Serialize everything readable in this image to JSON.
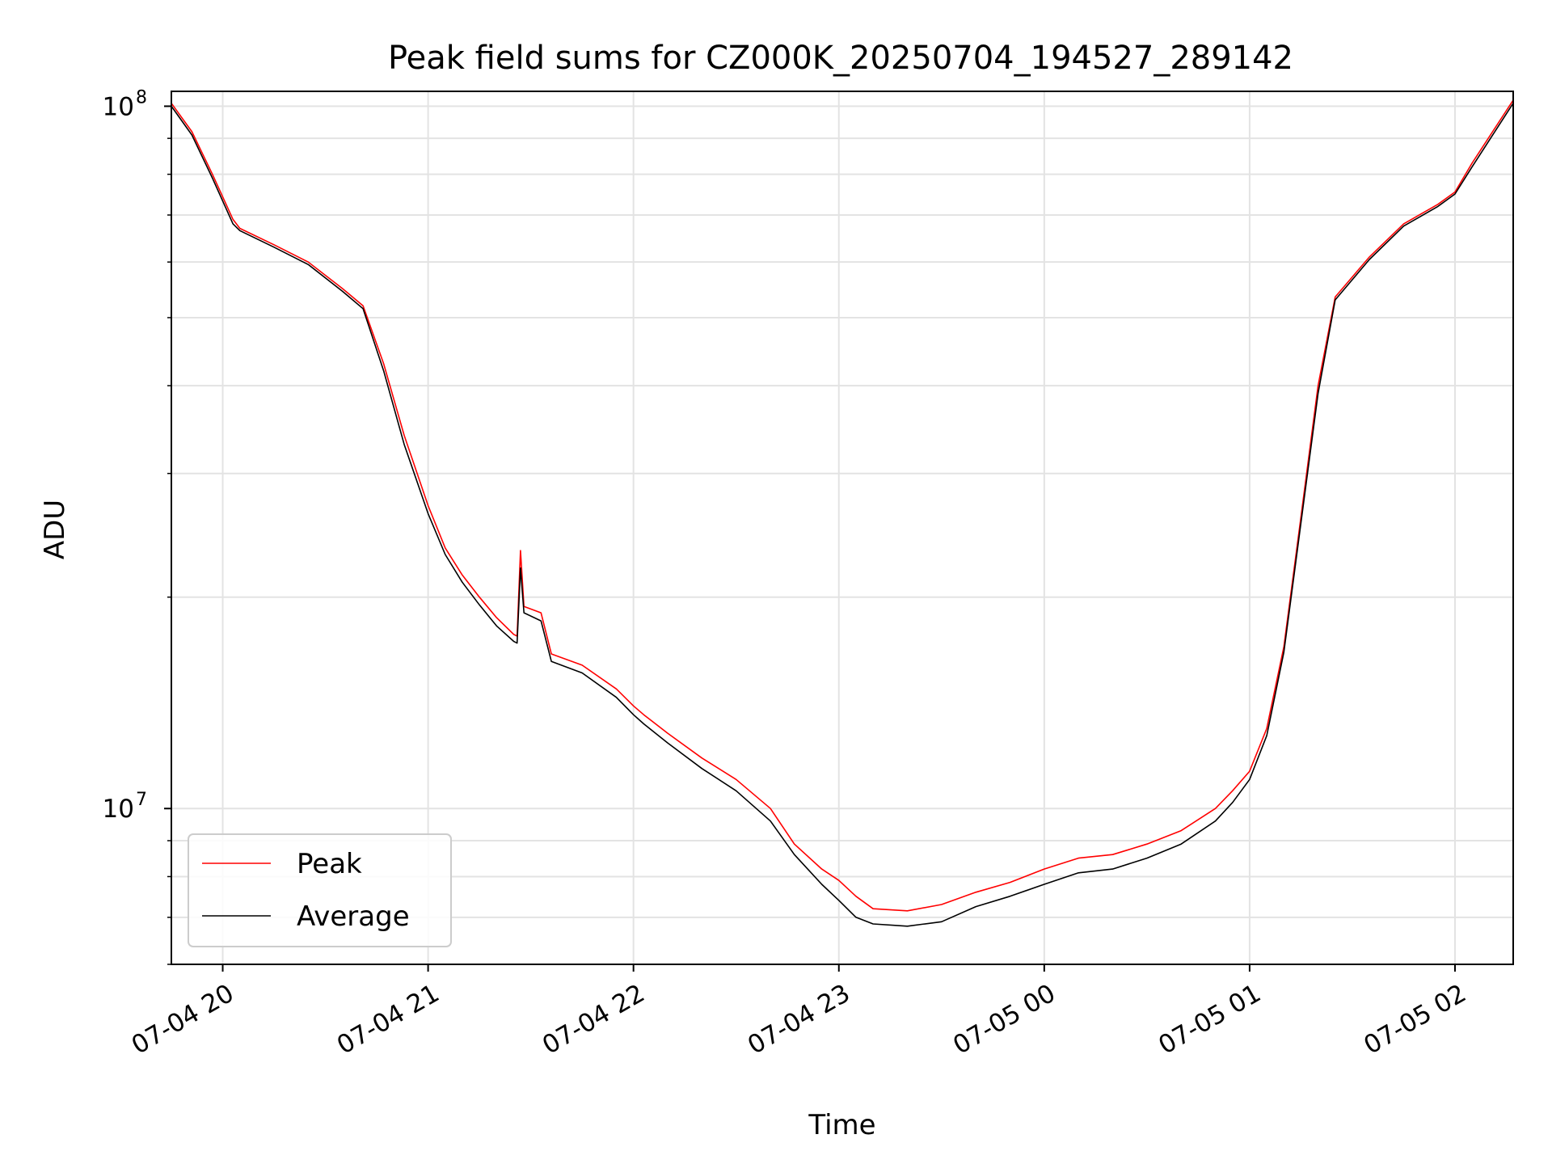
{
  "chart_data": {
    "type": "line",
    "title": "Peak field sums for CZ000K_20250704_194527_289142",
    "xlabel": "Time",
    "ylabel": "ADU",
    "x_scale": "time",
    "y_scale": "log",
    "xlim": [
      "2025-07-04 19:45",
      "2025-07-05 02:17"
    ],
    "ylim": [
      6000000,
      105000000
    ],
    "x_ticks": [
      "2025-07-04 20:00",
      "2025-07-04 21:00",
      "2025-07-04 22:00",
      "2025-07-04 23:00",
      "2025-07-05 00:00",
      "2025-07-05 01:00",
      "2025-07-05 02:00"
    ],
    "x_tick_labels": [
      "07-04 20",
      "07-04 21",
      "07-04 22",
      "07-04 23",
      "07-05 00",
      "07-05 01",
      "07-05 02"
    ],
    "y_tick_labels": [
      {
        "base": "10",
        "exp": "8",
        "value": 100000000
      },
      {
        "base": "10",
        "exp": "7",
        "value": 10000000
      }
    ],
    "grid": true,
    "legend_position": "lower-left",
    "series": [
      {
        "name": "Peak",
        "color": "#ff0000",
        "points": [
          [
            "2025-07-04 19:45",
            101000000
          ],
          [
            "2025-07-04 19:51",
            92000000
          ],
          [
            "2025-07-04 19:57",
            80000000
          ],
          [
            "2025-07-04 20:03",
            69000000
          ],
          [
            "2025-07-04 20:05",
            67000000
          ],
          [
            "2025-07-04 20:15",
            63500000
          ],
          [
            "2025-07-04 20:25",
            60000000
          ],
          [
            "2025-07-04 20:35",
            55000000
          ],
          [
            "2025-07-04 20:41",
            52000000
          ],
          [
            "2025-07-04 20:47",
            43000000
          ],
          [
            "2025-07-04 20:53",
            34000000
          ],
          [
            "2025-07-04 21:00",
            27000000
          ],
          [
            "2025-07-04 21:05",
            23500000
          ],
          [
            "2025-07-04 21:10",
            21500000
          ],
          [
            "2025-07-04 21:15",
            20000000
          ],
          [
            "2025-07-04 21:20",
            18700000
          ],
          [
            "2025-07-04 21:25",
            17700000
          ],
          [
            "2025-07-04 21:26",
            17600000
          ],
          [
            "2025-07-04 21:27",
            23300000
          ],
          [
            "2025-07-04 21:28",
            19400000
          ],
          [
            "2025-07-04 21:33",
            19000000
          ],
          [
            "2025-07-04 21:36",
            16600000
          ],
          [
            "2025-07-04 21:45",
            16000000
          ],
          [
            "2025-07-04 21:55",
            14800000
          ],
          [
            "2025-07-04 22:00",
            14000000
          ],
          [
            "2025-07-04 22:03",
            13600000
          ],
          [
            "2025-07-04 22:10",
            12800000
          ],
          [
            "2025-07-04 22:20",
            11800000
          ],
          [
            "2025-07-04 22:30",
            11000000
          ],
          [
            "2025-07-04 22:40",
            10000000
          ],
          [
            "2025-07-04 22:47",
            8900000
          ],
          [
            "2025-07-04 22:55",
            8200000
          ],
          [
            "2025-07-04 23:00",
            7900000
          ],
          [
            "2025-07-04 23:05",
            7500000
          ],
          [
            "2025-07-04 23:10",
            7200000
          ],
          [
            "2025-07-04 23:20",
            7150000
          ],
          [
            "2025-07-04 23:30",
            7300000
          ],
          [
            "2025-07-04 23:40",
            7600000
          ],
          [
            "2025-07-04 23:50",
            7850000
          ],
          [
            "2025-07-05 00:00",
            8200000
          ],
          [
            "2025-07-05 00:10",
            8500000
          ],
          [
            "2025-07-05 00:20",
            8600000
          ],
          [
            "2025-07-05 00:30",
            8900000
          ],
          [
            "2025-07-05 00:40",
            9300000
          ],
          [
            "2025-07-05 00:50",
            10000000
          ],
          [
            "2025-07-05 00:55",
            10600000
          ],
          [
            "2025-07-05 01:00",
            11300000
          ],
          [
            "2025-07-05 01:05",
            13000000
          ],
          [
            "2025-07-05 01:10",
            17000000
          ],
          [
            "2025-07-05 01:15",
            26000000
          ],
          [
            "2025-07-05 01:20",
            40000000
          ],
          [
            "2025-07-05 01:25",
            53500000
          ],
          [
            "2025-07-05 01:35",
            61000000
          ],
          [
            "2025-07-05 01:45",
            68000000
          ],
          [
            "2025-07-05 01:55",
            72500000
          ],
          [
            "2025-07-05 02:00",
            75500000
          ],
          [
            "2025-07-05 02:05",
            83000000
          ],
          [
            "2025-07-05 02:17",
            102000000
          ]
        ]
      },
      {
        "name": "Average",
        "color": "#000000",
        "points": [
          [
            "2025-07-04 19:45",
            100000000
          ],
          [
            "2025-07-04 19:51",
            91000000
          ],
          [
            "2025-07-04 19:57",
            79000000
          ],
          [
            "2025-07-04 20:03",
            68000000
          ],
          [
            "2025-07-04 20:05",
            66500000
          ],
          [
            "2025-07-04 20:15",
            63000000
          ],
          [
            "2025-07-04 20:25",
            59500000
          ],
          [
            "2025-07-04 20:35",
            54500000
          ],
          [
            "2025-07-04 20:41",
            51500000
          ],
          [
            "2025-07-04 20:47",
            42000000
          ],
          [
            "2025-07-04 20:53",
            33000000
          ],
          [
            "2025-07-04 21:00",
            26300000
          ],
          [
            "2025-07-04 21:05",
            23000000
          ],
          [
            "2025-07-04 21:10",
            21000000
          ],
          [
            "2025-07-04 21:15",
            19500000
          ],
          [
            "2025-07-04 21:20",
            18200000
          ],
          [
            "2025-07-04 21:25",
            17300000
          ],
          [
            "2025-07-04 21:26",
            17200000
          ],
          [
            "2025-07-04 21:27",
            22000000
          ],
          [
            "2025-07-04 21:28",
            19000000
          ],
          [
            "2025-07-04 21:33",
            18500000
          ],
          [
            "2025-07-04 21:36",
            16200000
          ],
          [
            "2025-07-04 21:45",
            15600000
          ],
          [
            "2025-07-04 21:55",
            14400000
          ],
          [
            "2025-07-04 22:00",
            13600000
          ],
          [
            "2025-07-04 22:03",
            13200000
          ],
          [
            "2025-07-04 22:10",
            12400000
          ],
          [
            "2025-07-04 22:20",
            11400000
          ],
          [
            "2025-07-04 22:30",
            10600000
          ],
          [
            "2025-07-04 22:40",
            9600000
          ],
          [
            "2025-07-04 22:47",
            8600000
          ],
          [
            "2025-07-04 22:55",
            7800000
          ],
          [
            "2025-07-04 23:00",
            7400000
          ],
          [
            "2025-07-04 23:05",
            7000000
          ],
          [
            "2025-07-04 23:10",
            6850000
          ],
          [
            "2025-07-04 23:20",
            6800000
          ],
          [
            "2025-07-04 23:30",
            6900000
          ],
          [
            "2025-07-04 23:40",
            7250000
          ],
          [
            "2025-07-04 23:50",
            7500000
          ],
          [
            "2025-07-05 00:00",
            7800000
          ],
          [
            "2025-07-05 00:10",
            8100000
          ],
          [
            "2025-07-05 00:20",
            8200000
          ],
          [
            "2025-07-05 00:30",
            8500000
          ],
          [
            "2025-07-05 00:40",
            8900000
          ],
          [
            "2025-07-05 00:50",
            9600000
          ],
          [
            "2025-07-05 00:55",
            10200000
          ],
          [
            "2025-07-05 01:00",
            11000000
          ],
          [
            "2025-07-05 01:05",
            12700000
          ],
          [
            "2025-07-05 01:10",
            16700000
          ],
          [
            "2025-07-05 01:15",
            25500000
          ],
          [
            "2025-07-05 01:20",
            39000000
          ],
          [
            "2025-07-05 01:25",
            53000000
          ],
          [
            "2025-07-05 01:35",
            60500000
          ],
          [
            "2025-07-05 01:45",
            67500000
          ],
          [
            "2025-07-05 01:55",
            72000000
          ],
          [
            "2025-07-05 02:00",
            75000000
          ],
          [
            "2025-07-05 02:05",
            82000000
          ],
          [
            "2025-07-05 02:17",
            101000000
          ]
        ]
      }
    ]
  }
}
